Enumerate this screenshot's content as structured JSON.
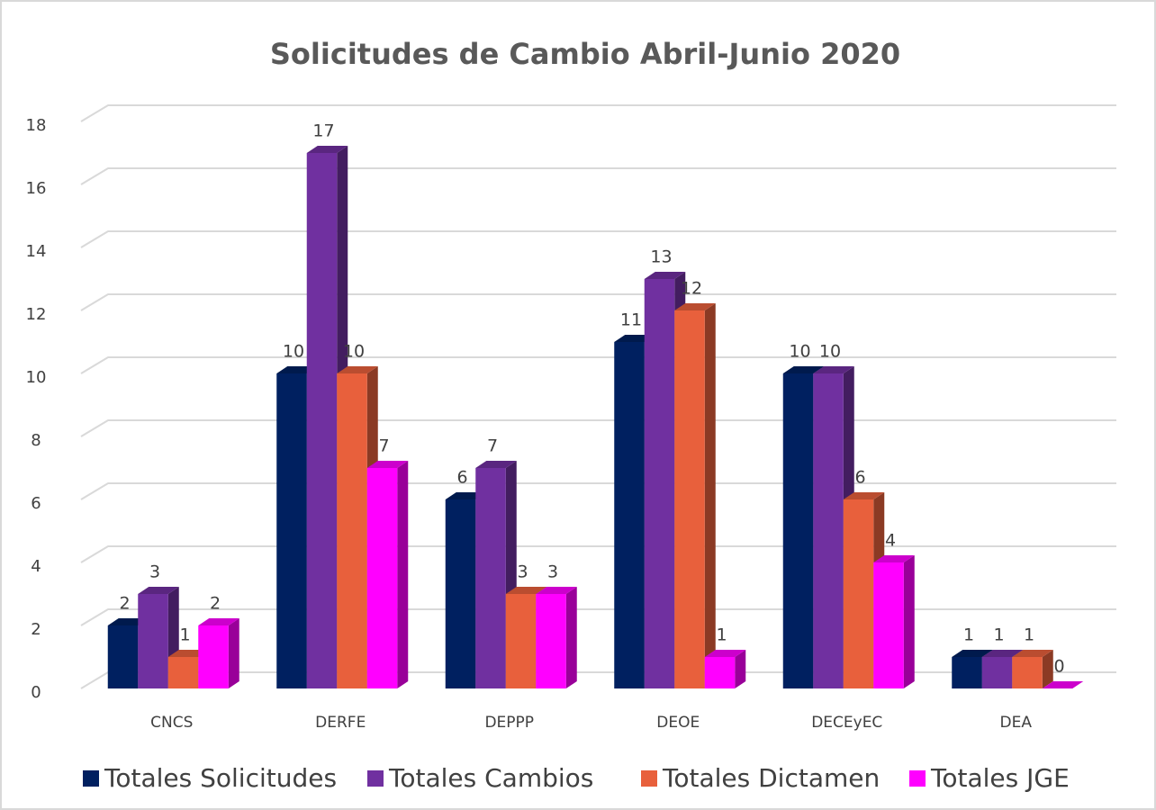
{
  "chart_data": {
    "type": "bar3d",
    "title": "Solicitudes de Cambio Abril-Junio 2020",
    "categories": [
      "CNCS",
      "DERFE",
      "DEPPP",
      "DEOE",
      "DECEyEC",
      "DEA"
    ],
    "series": [
      {
        "name": "Totales Solicitudes",
        "color": "#002060",
        "values": [
          2,
          10,
          6,
          11,
          10,
          1
        ]
      },
      {
        "name": "Totales Cambios",
        "color": "#7030a0",
        "values": [
          3,
          17,
          7,
          13,
          10,
          1
        ]
      },
      {
        "name": "Totales Dictamen",
        "color": "#e8603c",
        "values": [
          1,
          10,
          3,
          12,
          6,
          1
        ]
      },
      {
        "name": "Totales JGE",
        "color": "#ff00ff",
        "values": [
          2,
          7,
          3,
          1,
          4,
          0
        ]
      }
    ],
    "ylim": [
      0,
      18
    ],
    "yticks": [
      0,
      2,
      4,
      6,
      8,
      10,
      12,
      14,
      16,
      18
    ],
    "grid": true
  }
}
